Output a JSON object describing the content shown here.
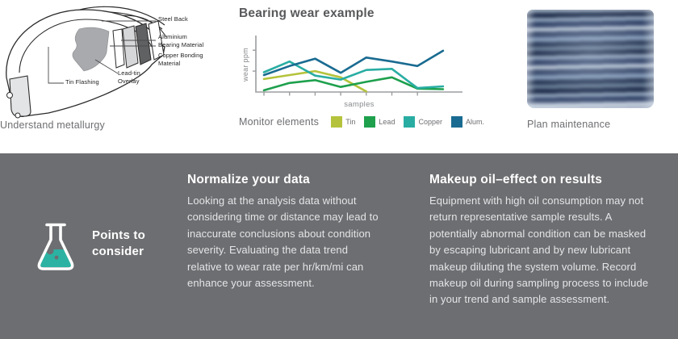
{
  "panels": {
    "metallurgy": {
      "caption": "Understand metallurgy",
      "labels": {
        "steel_back": "Steel Back",
        "aluminium": "Aluminium Bearing Material",
        "copper": "Copper Bonding Material",
        "lead_tin": "Lead-tin Overlay",
        "tin_flashing": "Tin Flashing"
      }
    },
    "chart": {
      "legend_title": "Monitor elements"
    },
    "photo": {
      "caption": "Plan maintenance"
    }
  },
  "chart_data": {
    "type": "line",
    "title": "Bearing wear example",
    "xlabel": "samples",
    "ylabel": "wear ppm",
    "x": [
      1,
      2,
      3,
      4,
      5,
      6,
      7,
      8
    ],
    "ylim": [
      0,
      100
    ],
    "grid": false,
    "legend_position": "bottom",
    "axis_color": "#9b9da0",
    "ytick_positions": [
      37,
      74
    ],
    "xtick_count": 7,
    "series": [
      {
        "name": "Tin",
        "color": "#b5c33c",
        "values": [
          23,
          30,
          37,
          26,
          1
        ]
      },
      {
        "name": "Lead",
        "color": "#1ea04d",
        "values": [
          3,
          16,
          21,
          9,
          18,
          26,
          6,
          5
        ]
      },
      {
        "name": "Copper",
        "color": "#29ada3",
        "values": [
          35,
          54,
          29,
          22,
          39,
          41,
          7,
          10
        ]
      },
      {
        "name": "Alum.",
        "color": "#1a6b91",
        "values": [
          30,
          46,
          59,
          34,
          61,
          54,
          46,
          73
        ]
      }
    ]
  },
  "considerations": {
    "label": "Points to consider",
    "columns": [
      {
        "heading": "Normalize your data",
        "body": "Looking at the analysis data without considering time or distance may lead to inaccurate conclusions about condition severity. Evaluating the data trend relative to wear rate per hr/km/mi can enhance your assessment."
      },
      {
        "heading": "Makeup oil–effect on results",
        "body": "Equipment with high oil consumption may not return representative sample results.  A potentially abnormal condition can be masked by escaping lubricant and by new lubricant makeup diluting the system volume. Record makeup oil during sampling process to include in your trend and sample assessment."
      }
    ]
  },
  "colors": {
    "panel_gray": "#6d6e71",
    "heading_gray": "#58595b",
    "accent_teal": "#2bb2a2",
    "body_text_light": "#e4e5e7"
  }
}
